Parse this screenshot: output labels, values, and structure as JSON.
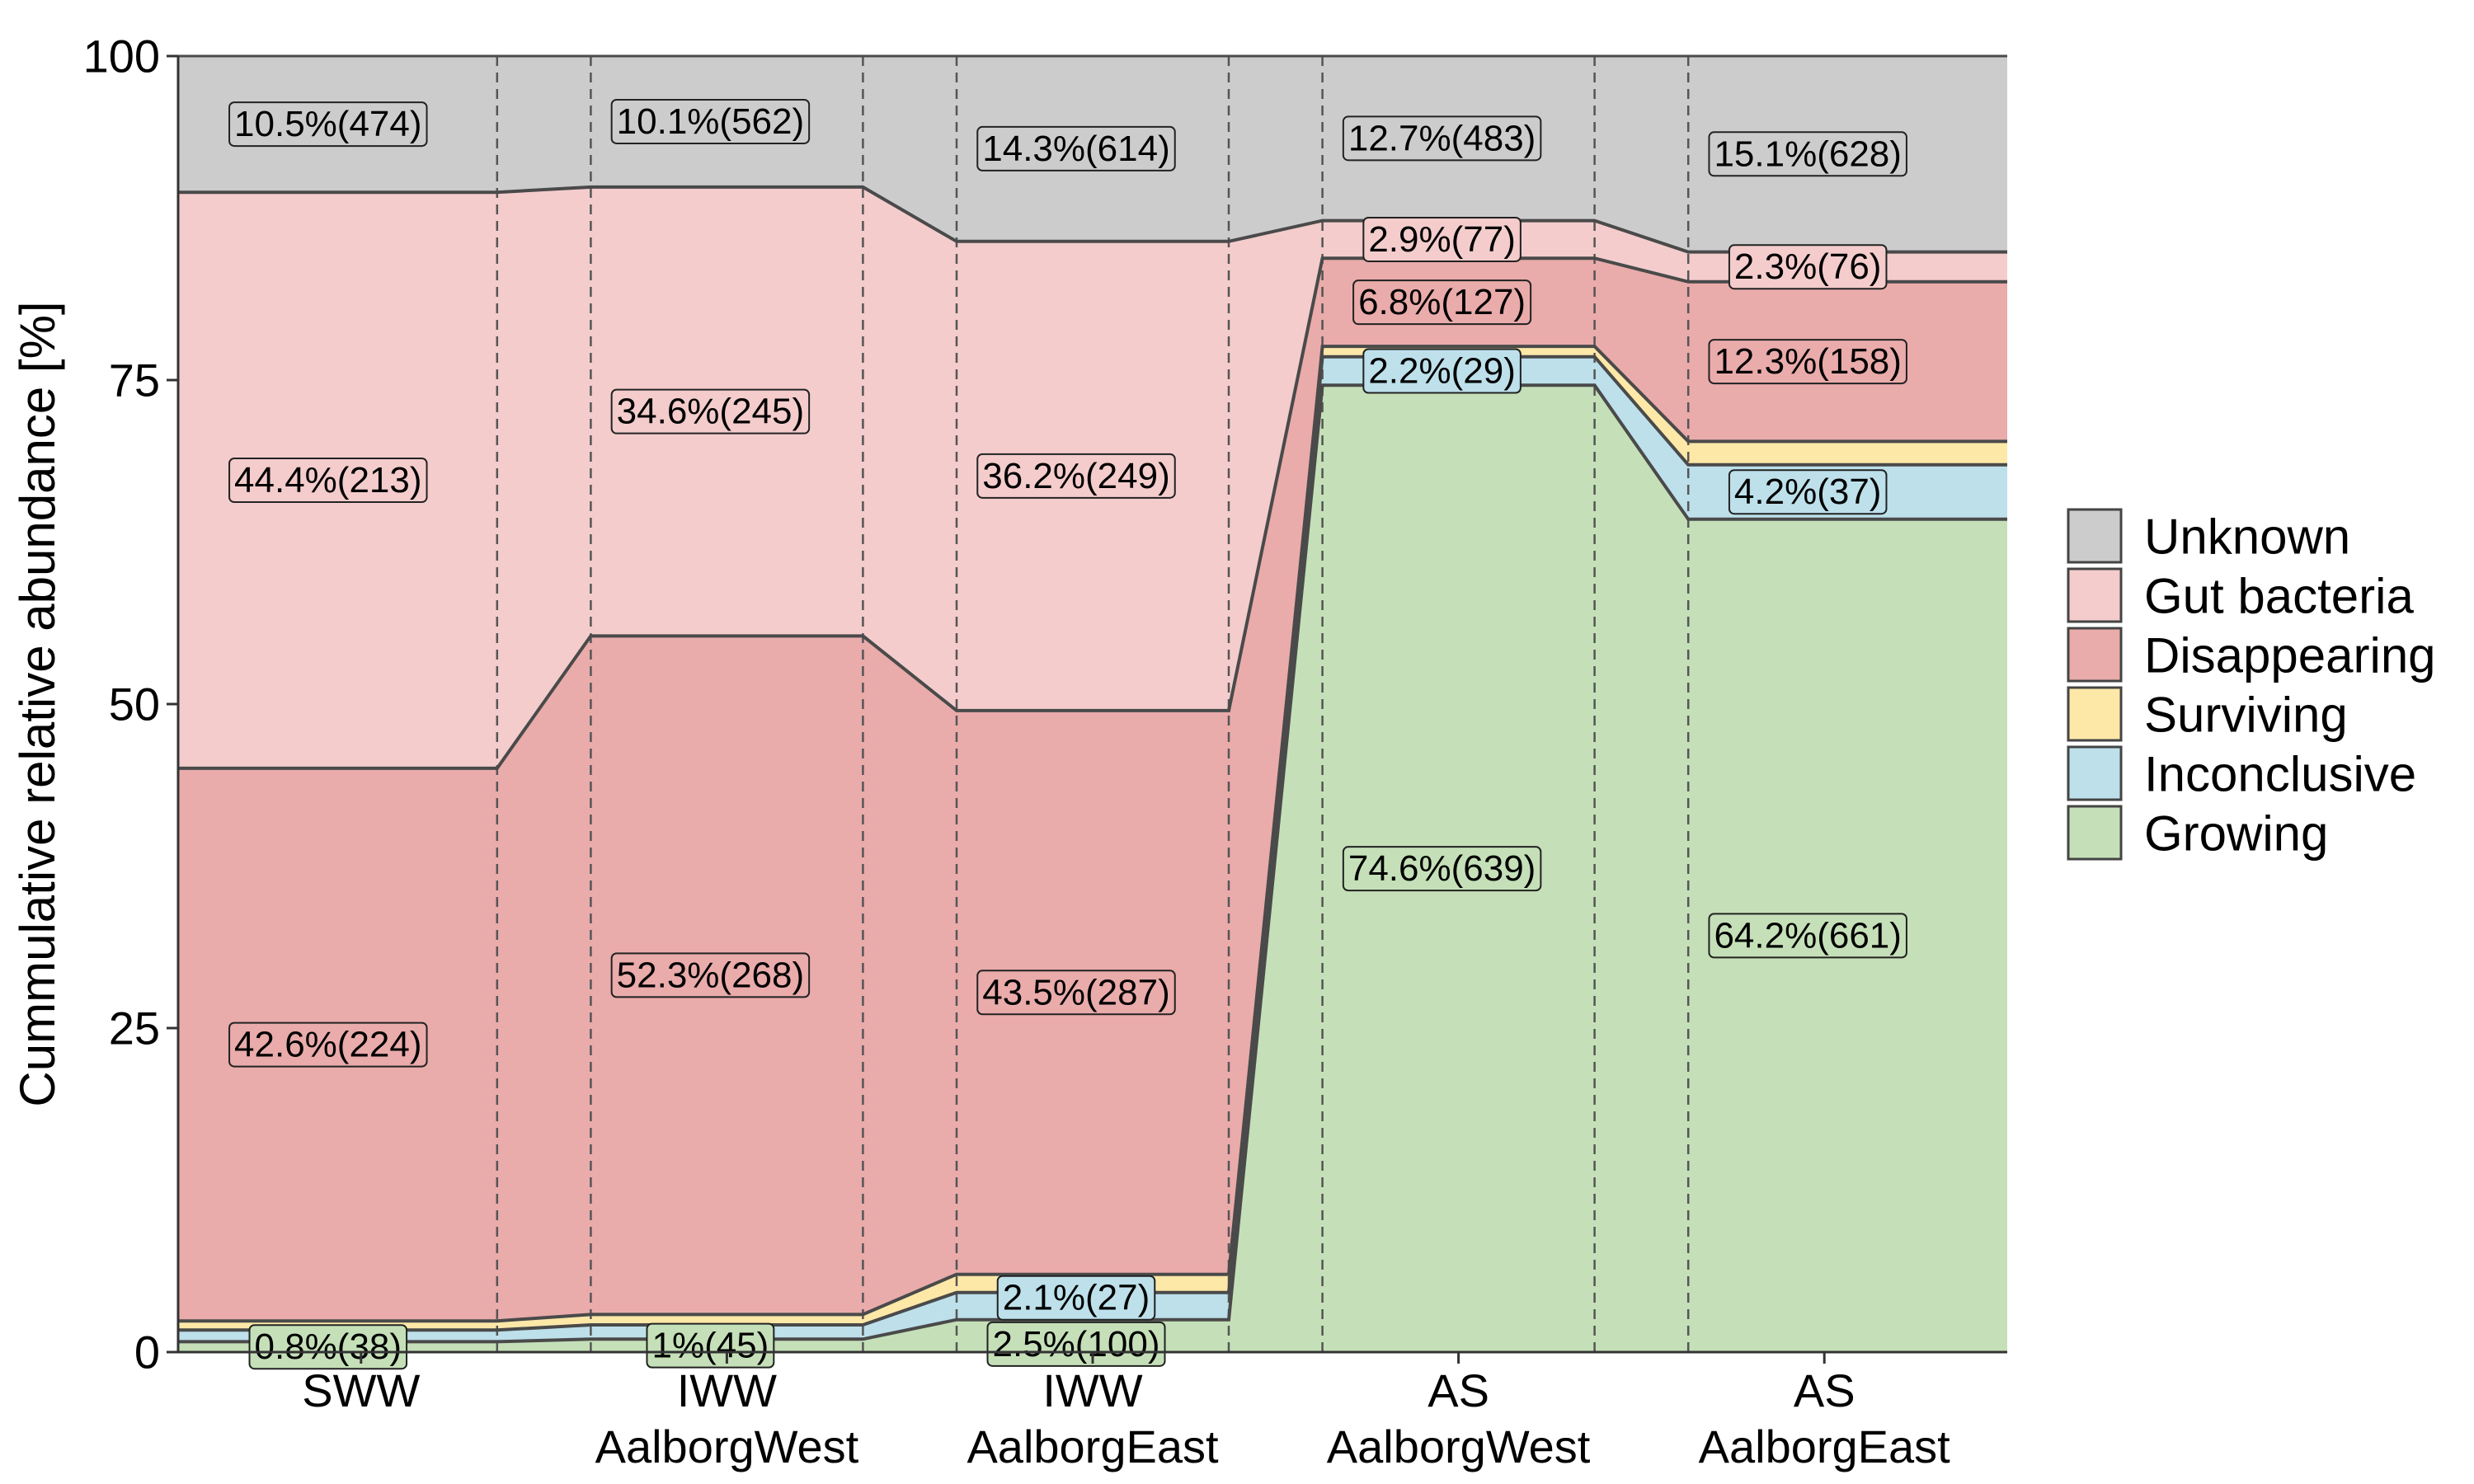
{
  "chart_data": {
    "type": "area",
    "ylabel": "Cummulative relative abundance [%]",
    "xlabel": "",
    "ylim": [
      0,
      100
    ],
    "yticks": [
      0,
      25,
      50,
      75,
      100
    ],
    "grid": false,
    "legend_position": "right",
    "categories": [
      {
        "line1": "SWW",
        "line2": ""
      },
      {
        "line1": "IWW",
        "line2": "AalborgWest"
      },
      {
        "line1": "IWW",
        "line2": "AalborgEast"
      },
      {
        "line1": "AS",
        "line2": "AalborgWest"
      },
      {
        "line1": "AS",
        "line2": "AalborgEast"
      }
    ],
    "series": [
      {
        "name": "Growing",
        "color": "#c5e0b8",
        "values": [
          0.8,
          1.0,
          2.5,
          74.6,
          64.2
        ],
        "labels": [
          "0.8%(38)",
          "1%(45)",
          "2.5%(100)",
          "74.6%(639)",
          "64.2%(661)"
        ]
      },
      {
        "name": "Inconclusive",
        "color": "#bde0eb",
        "values": [
          0.9,
          1.1,
          2.1,
          2.2,
          4.2
        ],
        "labels": [
          "",
          "",
          "2.1%(27)",
          "2.2%(29)",
          "4.2%(37)"
        ]
      },
      {
        "name": "Surviving",
        "color": "#fde8a8",
        "values": [
          0.7,
          0.8,
          1.4,
          0.8,
          1.8
        ],
        "labels": [
          "",
          "",
          "",
          "",
          ""
        ]
      },
      {
        "name": "Disappearing",
        "color": "#eaabab",
        "values": [
          42.6,
          52.3,
          43.5,
          6.8,
          12.3
        ],
        "labels": [
          "42.6%(224)",
          "52.3%(268)",
          "43.5%(287)",
          "6.8%(127)",
          "12.3%(158)"
        ]
      },
      {
        "name": "Gut bacteria",
        "color": "#f4cccc",
        "values": [
          44.4,
          34.6,
          36.2,
          2.9,
          2.3
        ],
        "labels": [
          "44.4%(213)",
          "34.6%(245)",
          "36.2%(249)",
          "2.9%(77)",
          "2.3%(76)"
        ]
      },
      {
        "name": "Unknown",
        "color": "#cccccc",
        "values": [
          10.5,
          10.1,
          14.3,
          12.7,
          15.1
        ],
        "labels": [
          "10.5%(474)",
          "10.1%(562)",
          "14.3%(614)",
          "12.7%(483)",
          "15.1%(628)"
        ]
      }
    ],
    "legend_order": [
      "Unknown",
      "Gut bacteria",
      "Disappearing",
      "Surviving",
      "Inconclusive",
      "Growing"
    ]
  }
}
